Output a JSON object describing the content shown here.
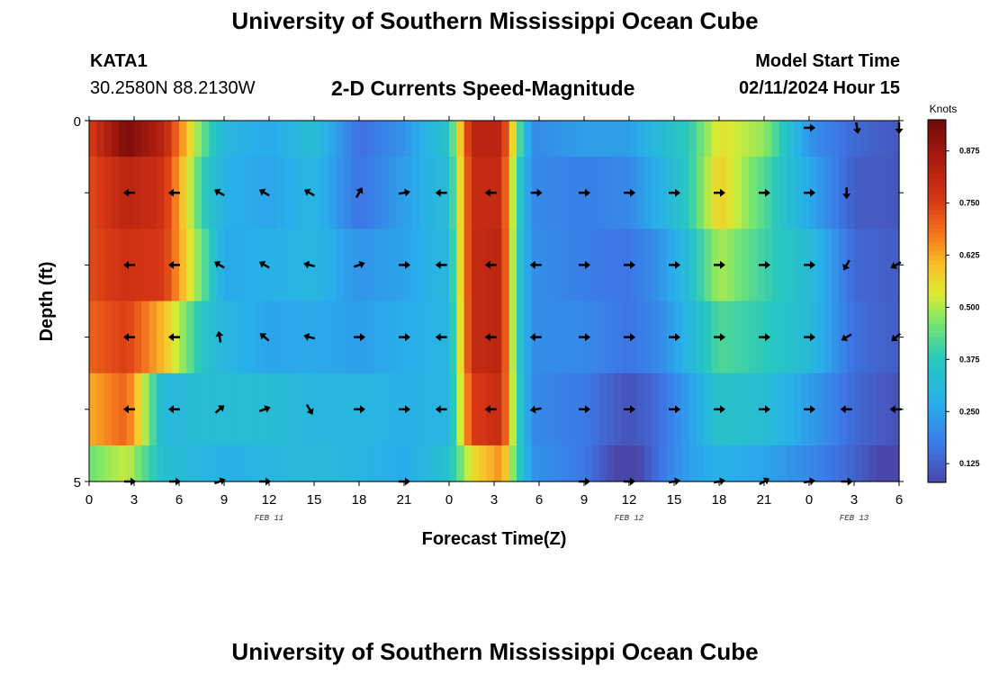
{
  "header": {
    "title": "University of Southern Mississippi Ocean Cube",
    "station_id": "KATA1",
    "coordinates": "30.2580N  88.2130W",
    "chart_title": "2-D Currents Speed-Magnitude",
    "model_label": "Model Start Time",
    "model_time": "02/11/2024 Hour 15"
  },
  "footer": {
    "title": "University of Southern Mississippi Ocean Cube"
  },
  "chart_data": {
    "type": "heatmap",
    "title": "2-D Currents Speed-Magnitude",
    "xlabel": "Forecast Time(Z)",
    "ylabel": "Depth (ft)",
    "colorbar_label": "Knots",
    "xlim": [
      0,
      54
    ],
    "ylim": [
      0,
      5
    ],
    "x_ticks": [
      0,
      3,
      6,
      9,
      12,
      15,
      18,
      21,
      24,
      27,
      30,
      33,
      36,
      39,
      42,
      45,
      48,
      51,
      54
    ],
    "x_tick_labels": [
      "0",
      "3",
      "6",
      "9",
      "12",
      "15",
      "18",
      "21",
      "0",
      "3",
      "6",
      "9",
      "12",
      "15",
      "18",
      "21",
      "0",
      "3",
      "6"
    ],
    "y_tick_labels": [
      {
        "value": 0,
        "label": "0"
      },
      {
        "value": 5,
        "label": "5"
      }
    ],
    "date_labels": [
      {
        "x": 12,
        "label": "FEB 11"
      },
      {
        "x": 36,
        "label": "FEB 12"
      },
      {
        "x": 51,
        "label": "FEB 13"
      }
    ],
    "colorbar": {
      "min": 0.08,
      "max": 0.95,
      "ticks": [
        0.125,
        0.25,
        0.375,
        0.5,
        0.625,
        0.75,
        0.875
      ],
      "tick_labels": [
        "0.125",
        "0.250",
        "0.375",
        "0.500",
        "0.625",
        "0.750",
        "0.875"
      ]
    },
    "depth_rows": [
      0,
      1,
      2,
      3,
      4,
      5
    ],
    "speed_keyframes": [
      {
        "x": 0,
        "speeds": [
          0.75,
          0.73,
          0.73,
          0.7,
          0.62,
          0.45
        ]
      },
      {
        "x": 2.5,
        "speeds": [
          0.93,
          0.82,
          0.78,
          0.75,
          0.7,
          0.52
        ]
      },
      {
        "x": 5,
        "speeds": [
          0.82,
          0.78,
          0.76,
          0.6,
          0.3,
          0.33
        ]
      },
      {
        "x": 7.5,
        "speeds": [
          0.45,
          0.4,
          0.45,
          0.36,
          0.33,
          0.3
        ]
      },
      {
        "x": 9,
        "speeds": [
          0.3,
          0.28,
          0.26,
          0.3,
          0.33,
          0.28
        ]
      },
      {
        "x": 12,
        "speeds": [
          0.26,
          0.25,
          0.28,
          0.25,
          0.33,
          0.3
        ]
      },
      {
        "x": 15,
        "speeds": [
          0.33,
          0.3,
          0.3,
          0.26,
          0.3,
          0.32
        ]
      },
      {
        "x": 18,
        "speeds": [
          0.15,
          0.16,
          0.22,
          0.24,
          0.3,
          0.3
        ]
      },
      {
        "x": 21,
        "speeds": [
          0.22,
          0.24,
          0.25,
          0.27,
          0.28,
          0.26
        ]
      },
      {
        "x": 24,
        "speeds": [
          0.36,
          0.33,
          0.31,
          0.3,
          0.3,
          0.35
        ]
      },
      {
        "x": 25.5,
        "speeds": [
          0.82,
          0.8,
          0.8,
          0.8,
          0.75,
          0.55
        ]
      },
      {
        "x": 27.5,
        "speeds": [
          0.82,
          0.8,
          0.82,
          0.82,
          0.8,
          0.65
        ]
      },
      {
        "x": 28.5,
        "speeds": [
          0.48,
          0.42,
          0.4,
          0.4,
          0.42,
          0.42
        ]
      },
      {
        "x": 29.5,
        "speeds": [
          0.2,
          0.2,
          0.21,
          0.21,
          0.2,
          0.22
        ]
      },
      {
        "x": 33,
        "speeds": [
          0.24,
          0.18,
          0.18,
          0.2,
          0.17,
          0.17
        ]
      },
      {
        "x": 36,
        "speeds": [
          0.24,
          0.2,
          0.16,
          0.16,
          0.1,
          0.04
        ]
      },
      {
        "x": 38,
        "speeds": [
          0.32,
          0.28,
          0.22,
          0.2,
          0.15,
          0.16
        ]
      },
      {
        "x": 40,
        "speeds": [
          0.38,
          0.38,
          0.33,
          0.3,
          0.24,
          0.24
        ]
      },
      {
        "x": 42,
        "speeds": [
          0.55,
          0.58,
          0.5,
          0.42,
          0.35,
          0.28
        ]
      },
      {
        "x": 45,
        "speeds": [
          0.48,
          0.42,
          0.4,
          0.38,
          0.33,
          0.25
        ]
      },
      {
        "x": 48,
        "speeds": [
          0.22,
          0.26,
          0.32,
          0.32,
          0.24,
          0.2
        ]
      },
      {
        "x": 51,
        "speeds": [
          0.14,
          0.12,
          0.14,
          0.15,
          0.14,
          0.13
        ]
      },
      {
        "x": 54,
        "speeds": [
          0.11,
          0.11,
          0.12,
          0.12,
          0.1,
          0.04
        ]
      }
    ],
    "vector_depths": [
      1,
      2,
      3,
      4,
      5
    ],
    "vector_direction_units": "degrees counterclockwise from east",
    "vectors": [
      {
        "x": 2.7,
        "dirs": [
          180,
          180,
          180,
          180,
          0
        ]
      },
      {
        "x": 5.7,
        "dirs": [
          180,
          180,
          180,
          180,
          0
        ]
      },
      {
        "x": 8.7,
        "dirs": [
          150,
          150,
          100,
          40,
          20
        ]
      },
      {
        "x": 11.7,
        "dirs": [
          150,
          150,
          140,
          20,
          0
        ]
      },
      {
        "x": 14.7,
        "dirs": [
          150,
          165,
          165,
          300,
          null
        ]
      },
      {
        "x": 18,
        "dirs": [
          60,
          20,
          0,
          0,
          null
        ]
      },
      {
        "x": 21,
        "dirs": [
          10,
          0,
          0,
          0,
          0
        ]
      },
      {
        "x": 23.5,
        "dirs": [
          180,
          180,
          180,
          180,
          null
        ]
      },
      {
        "x": 26.8,
        "dirs": [
          180,
          180,
          180,
          180,
          null
        ]
      },
      {
        "x": 29.8,
        "dirs": [
          0,
          180,
          180,
          190,
          null
        ]
      },
      {
        "x": 33,
        "dirs": [
          0,
          0,
          0,
          0,
          0
        ]
      },
      {
        "x": 36,
        "dirs": [
          0,
          0,
          0,
          0,
          0
        ]
      },
      {
        "x": 39,
        "dirs": [
          0,
          0,
          0,
          0,
          10
        ]
      },
      {
        "x": 42,
        "dirs": [
          0,
          0,
          0,
          0,
          10
        ]
      },
      {
        "x": 45,
        "dirs": [
          0,
          0,
          0,
          0,
          30
        ]
      },
      {
        "x": 48,
        "dirs": [
          0,
          0,
          0,
          0,
          10
        ]
      },
      {
        "x": 50.5,
        "dirs": [
          270,
          240,
          210,
          180,
          0
        ]
      },
      {
        "x": 53.8,
        "dirs": [
          null,
          210,
          220,
          180,
          null
        ]
      }
    ],
    "top_row_vectors": [
      {
        "x": 51.2,
        "dir": 280
      },
      {
        "x": 54,
        "dir": 270
      },
      {
        "x": 48,
        "dir": 0
      }
    ]
  }
}
